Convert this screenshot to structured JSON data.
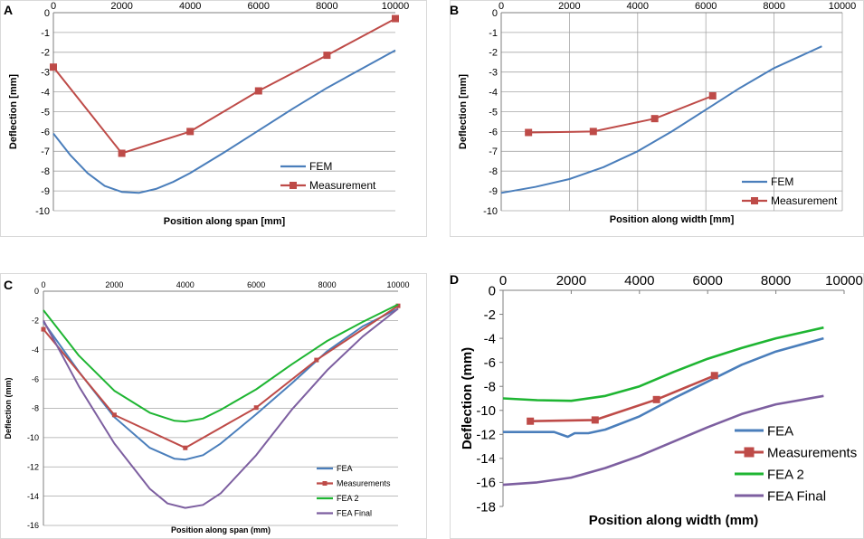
{
  "colors": {
    "blue": "#4a7ebb",
    "red": "#be4b48",
    "green": "#1eb532",
    "purple": "#7d5fa0",
    "grid": "#a6a6a6"
  },
  "chart_data": [
    {
      "panel": "A",
      "type": "line",
      "xlabel": "Position along span [mm]",
      "ylabel": "Deflection [mm]",
      "xlim": [
        0,
        10000
      ],
      "ylim": [
        -10,
        0
      ],
      "xticks": [
        "0",
        "2000",
        "4000",
        "6000",
        "8000",
        "10000"
      ],
      "yticks": [
        "0",
        "-1",
        "-2",
        "-3",
        "-4",
        "-5",
        "-6",
        "-7",
        "-8",
        "-9",
        "-10"
      ],
      "grid": "horizontal",
      "legend_position": "bottom-right",
      "series": [
        {
          "name": "FEM",
          "color": "blue",
          "marker": "none",
          "x": [
            0,
            500,
            1000,
            1500,
            2000,
            2500,
            3000,
            3500,
            4000,
            5000,
            6000,
            7000,
            8000,
            9000,
            10000
          ],
          "y": [
            -6.1,
            -7.2,
            -8.1,
            -8.75,
            -9.05,
            -9.1,
            -8.9,
            -8.55,
            -8.1,
            -7.05,
            -5.95,
            -4.85,
            -3.8,
            -2.85,
            -1.9
          ]
        },
        {
          "name": "Measurement",
          "color": "red",
          "marker": "square",
          "x": [
            0,
            2000,
            4000,
            6000,
            8000,
            10000
          ],
          "y": [
            -2.75,
            -7.1,
            -6.0,
            -3.95,
            -2.15,
            -0.3
          ]
        }
      ]
    },
    {
      "panel": "B",
      "type": "line",
      "xlabel": "Position along width [mm]",
      "ylabel": "Deflection [mm]",
      "xlim": [
        0,
        10000
      ],
      "ylim": [
        -10,
        0
      ],
      "xticks": [
        "0",
        "2000",
        "4000",
        "6000",
        "8000",
        "10000"
      ],
      "yticks": [
        "0",
        "-1",
        "-2",
        "-3",
        "-4",
        "-5",
        "-6",
        "-7",
        "-8",
        "-9",
        "-10"
      ],
      "grid": "both",
      "legend_position": "bottom-right",
      "series": [
        {
          "name": "FEM",
          "color": "blue",
          "marker": "none",
          "x": [
            0,
            1000,
            2000,
            3000,
            4000,
            5000,
            6000,
            7000,
            8000,
            9400
          ],
          "y": [
            -9.1,
            -8.8,
            -8.4,
            -7.8,
            -7.0,
            -6.0,
            -4.9,
            -3.8,
            -2.8,
            -1.7
          ]
        },
        {
          "name": "Measurement",
          "color": "red",
          "marker": "square",
          "x": [
            800,
            2700,
            4500,
            6200
          ],
          "y": [
            -6.05,
            -6.0,
            -5.35,
            -4.2
          ]
        }
      ]
    },
    {
      "panel": "C",
      "type": "line",
      "xlabel": "Position along span (mm)",
      "ylabel": "Deflection (mm)",
      "xlim": [
        0,
        10000
      ],
      "ylim": [
        -16,
        0
      ],
      "xticks": [
        "0",
        "2000",
        "4000",
        "6000",
        "8000",
        "10000"
      ],
      "yticks": [
        "0",
        "-2",
        "-4",
        "-6",
        "-8",
        "-10",
        "-12",
        "-14",
        "-16"
      ],
      "grid": "horizontal",
      "legend_position": "bottom-right",
      "series": [
        {
          "name": "FEA",
          "color": "blue",
          "marker": "none",
          "x": [
            0,
            1000,
            2000,
            3000,
            3700,
            4000,
            4500,
            5000,
            6000,
            7000,
            8000,
            9000,
            10000
          ],
          "y": [
            -2.1,
            -5.5,
            -8.6,
            -10.7,
            -11.45,
            -11.5,
            -11.2,
            -10.4,
            -8.4,
            -6.3,
            -4.1,
            -2.4,
            -1.2
          ]
        },
        {
          "name": "Measurements",
          "color": "red",
          "marker": "square",
          "x": [
            0,
            2000,
            4000,
            6000,
            7700,
            10000
          ],
          "y": [
            -2.6,
            -8.45,
            -10.7,
            -7.95,
            -4.7,
            -1.0
          ]
        },
        {
          "name": "FEA 2",
          "color": "green",
          "marker": "none",
          "x": [
            0,
            1000,
            2000,
            3000,
            3700,
            4000,
            4500,
            5000,
            6000,
            7000,
            8000,
            9000,
            10000
          ],
          "y": [
            -1.3,
            -4.4,
            -6.8,
            -8.3,
            -8.85,
            -8.9,
            -8.7,
            -8.1,
            -6.7,
            -5.0,
            -3.4,
            -2.1,
            -0.9
          ]
        },
        {
          "name": "FEA Final",
          "color": "purple",
          "marker": "none",
          "x": [
            0,
            1000,
            2000,
            3000,
            3500,
            4000,
            4500,
            5000,
            6000,
            7000,
            8000,
            9000,
            10000
          ],
          "y": [
            -2.0,
            -6.5,
            -10.4,
            -13.5,
            -14.5,
            -14.8,
            -14.6,
            -13.8,
            -11.2,
            -8.1,
            -5.4,
            -3.1,
            -1.2
          ]
        }
      ]
    },
    {
      "panel": "D",
      "type": "line",
      "xlabel": "Position along width (mm)",
      "ylabel": "Deflection (mm)",
      "xlim": [
        0,
        10000
      ],
      "ylim": [
        -18,
        0
      ],
      "xticks": [
        "0",
        "2000",
        "4000",
        "6000",
        "8000",
        "10000"
      ],
      "yticks": [
        "0",
        "-2",
        "-4",
        "-6",
        "-8",
        "-10",
        "-12",
        "-14",
        "-16",
        "-18"
      ],
      "grid": "none",
      "legend_position": "bottom-right",
      "series": [
        {
          "name": "FEA",
          "color": "blue",
          "marker": "none",
          "x": [
            0,
            1000,
            1500,
            1900,
            2100,
            2500,
            3000,
            4000,
            5000,
            6000,
            7000,
            8000,
            9400
          ],
          "y": [
            -11.8,
            -11.8,
            -11.8,
            -12.2,
            -11.9,
            -11.9,
            -11.6,
            -10.5,
            -9.0,
            -7.6,
            -6.2,
            -5.1,
            -4.0
          ]
        },
        {
          "name": "Measurements",
          "color": "red",
          "marker": "square",
          "x": [
            800,
            2700,
            4500,
            6200
          ],
          "y": [
            -10.9,
            -10.8,
            -9.1,
            -7.1
          ]
        },
        {
          "name": "FEA 2",
          "color": "green",
          "marker": "none",
          "x": [
            0,
            1000,
            2000,
            3000,
            4000,
            5000,
            6000,
            7000,
            8000,
            9400
          ],
          "y": [
            -9.0,
            -9.15,
            -9.2,
            -8.8,
            -8.0,
            -6.8,
            -5.7,
            -4.8,
            -4.0,
            -3.1
          ]
        },
        {
          "name": "FEA Final",
          "color": "purple",
          "marker": "none",
          "x": [
            0,
            1000,
            2000,
            3000,
            4000,
            5000,
            6000,
            7000,
            8000,
            9400
          ],
          "y": [
            -16.2,
            -16.0,
            -15.6,
            -14.8,
            -13.8,
            -12.6,
            -11.4,
            -10.3,
            -9.5,
            -8.8
          ]
        }
      ]
    }
  ]
}
